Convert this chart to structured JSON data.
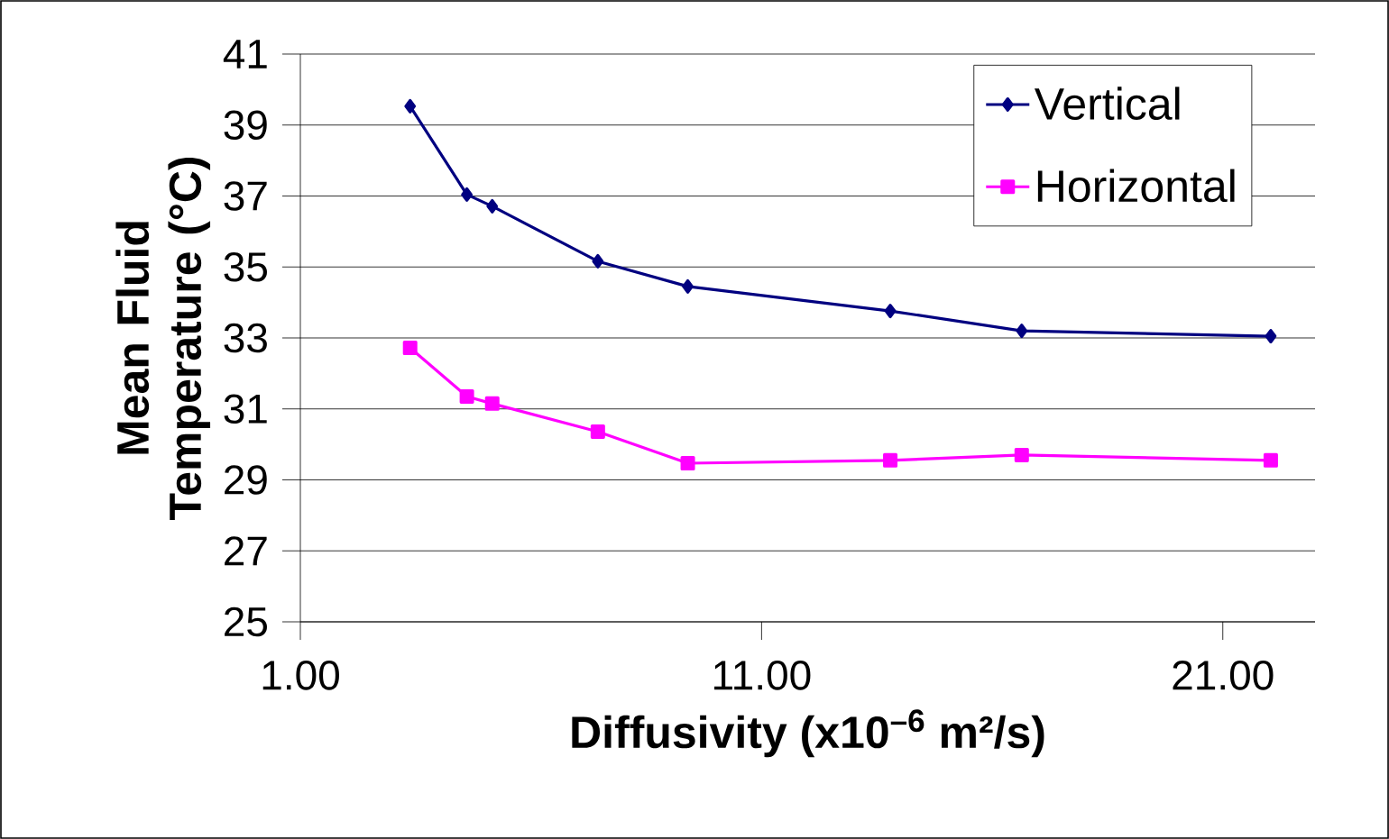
{
  "chart_data": {
    "type": "line",
    "xlabel": "Diffusivity (x10$^{–6}$ m²/s)",
    "ylabel": "Mean Fluid Temperature (°C)",
    "x": [
      3.38,
      4.61,
      5.16,
      7.45,
      9.4,
      13.79,
      16.64,
      22.04
    ],
    "series": [
      {
        "name": "Vertical",
        "color": "#000080",
        "marker": "diamond",
        "values": [
          39.53,
          37.04,
          36.71,
          35.16,
          34.45,
          33.76,
          33.2,
          33.05
        ]
      },
      {
        "name": "Horizontal",
        "color": "#ff00ff",
        "marker": "square",
        "values": [
          32.72,
          31.35,
          31.15,
          30.36,
          29.47,
          29.55,
          29.7,
          29.55
        ]
      }
    ],
    "xlim": [
      1,
      23
    ],
    "xticks": [
      {
        "value": 1,
        "label": "1.00"
      },
      {
        "value": 11,
        "label": "11.00"
      },
      {
        "value": 21,
        "label": "21.00"
      }
    ],
    "ylim": [
      25,
      41
    ],
    "yticks": [
      25,
      27,
      29,
      31,
      33,
      35,
      37,
      39,
      41
    ],
    "grid": "y",
    "legend": "top right",
    "line_style": "solid"
  }
}
